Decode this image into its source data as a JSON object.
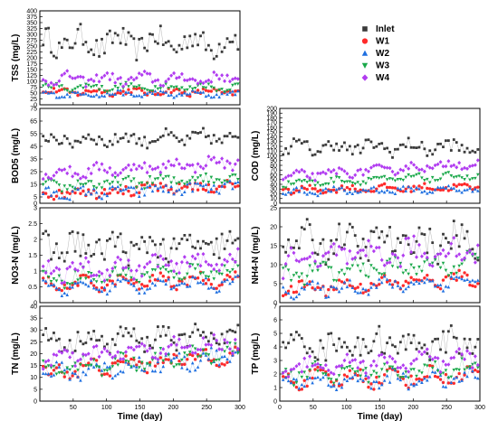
{
  "chart_data": [
    {
      "type": "scatter",
      "id": "tss",
      "ylabel": "TSS (mg/L)",
      "ylim": [
        0,
        400
      ],
      "yticks": [
        0,
        25,
        50,
        75,
        100,
        125,
        150,
        175,
        200,
        225,
        250,
        275,
        300,
        325,
        350,
        375,
        400
      ],
      "xlim": [
        0,
        300
      ],
      "xticks": [],
      "xlabel": "",
      "series": [
        {
          "name": "Inlet",
          "mean": 265,
          "amp": 30,
          "noise": 50,
          "trend": 0
        },
        {
          "name": "W1",
          "mean": 55,
          "amp": 8,
          "noise": 12,
          "trend": 0
        },
        {
          "name": "W2",
          "mean": 45,
          "amp": 8,
          "noise": 10,
          "trend": 0
        },
        {
          "name": "W3",
          "mean": 75,
          "amp": 10,
          "noise": 12,
          "trend": 0
        },
        {
          "name": "W4",
          "mean": 110,
          "amp": 15,
          "noise": 20,
          "trend": 0
        }
      ]
    },
    {
      "type": "scatter",
      "id": "bod",
      "ylabel": "BOD5 (mg/L)",
      "ylim": [
        0,
        75
      ],
      "yticks": [
        0,
        5,
        15,
        25,
        35,
        45,
        55,
        65,
        75
      ],
      "xlim": [
        0,
        300
      ],
      "xticks": [],
      "xlabel": "",
      "series": [
        {
          "name": "Inlet",
          "mean": 50,
          "amp": 3,
          "noise": 5,
          "trend": 2
        },
        {
          "name": "W1",
          "mean": 8,
          "amp": 2,
          "noise": 4,
          "trend": 6
        },
        {
          "name": "W2",
          "mean": 7,
          "amp": 2,
          "noise": 4,
          "trend": 6
        },
        {
          "name": "W3",
          "mean": 13,
          "amp": 2,
          "noise": 4,
          "trend": 8
        },
        {
          "name": "W4",
          "mean": 23,
          "amp": 3,
          "noise": 4,
          "trend": 10
        }
      ]
    },
    {
      "type": "scatter",
      "id": "cod",
      "ylabel": "COD (mg/L)",
      "ylim": [
        0,
        200
      ],
      "yticks": [
        0,
        10,
        20,
        30,
        40,
        50,
        60,
        70,
        80,
        90,
        100,
        110,
        120,
        130,
        140,
        150,
        160,
        170,
        180,
        190,
        200
      ],
      "xlim": [
        0,
        300
      ],
      "xticks": [],
      "xlabel": "",
      "series": [
        {
          "name": "Inlet",
          "mean": 118,
          "amp": 8,
          "noise": 14,
          "trend": 0
        },
        {
          "name": "W1",
          "mean": 28,
          "amp": 4,
          "noise": 6,
          "trend": 6
        },
        {
          "name": "W2",
          "mean": 24,
          "amp": 4,
          "noise": 6,
          "trend": 6
        },
        {
          "name": "W3",
          "mean": 42,
          "amp": 5,
          "noise": 6,
          "trend": 16
        },
        {
          "name": "W4",
          "mean": 55,
          "amp": 5,
          "noise": 8,
          "trend": 30
        }
      ]
    },
    {
      "type": "scatter",
      "id": "no3",
      "ylabel": "NO3-N (mg/L)",
      "ylim": [
        0,
        3.0
      ],
      "yticks": [
        0,
        0.5,
        1.0,
        1.5,
        2.0,
        2.5,
        3.0
      ],
      "xlim": [
        0,
        300
      ],
      "xticks": [],
      "xlabel": "",
      "series": [
        {
          "name": "Inlet",
          "mean": 1.75,
          "amp": 0.2,
          "noise": 0.45,
          "trend": 0
        },
        {
          "name": "W1",
          "mean": 0.55,
          "amp": 0.15,
          "noise": 0.15,
          "trend": 0.2
        },
        {
          "name": "W2",
          "mean": 0.45,
          "amp": 0.15,
          "noise": 0.15,
          "trend": 0.2
        },
        {
          "name": "W3",
          "mean": 0.75,
          "amp": 0.15,
          "noise": 0.2,
          "trend": 0.3
        },
        {
          "name": "W4",
          "mean": 0.95,
          "amp": 0.2,
          "noise": 0.25,
          "trend": 0.4
        }
      ]
    },
    {
      "type": "scatter",
      "id": "nh4",
      "ylabel": "NH4-N (mg/L)",
      "ylim": [
        0,
        25
      ],
      "yticks": [
        0,
        5,
        10,
        15,
        20,
        25
      ],
      "xlim": [
        0,
        300
      ],
      "xticks": [],
      "xlabel": "",
      "series": [
        {
          "name": "Inlet",
          "mean": 16,
          "amp": 2,
          "noise": 4,
          "trend": 0
        },
        {
          "name": "W1",
          "mean": 3.5,
          "amp": 1,
          "noise": 1.5,
          "trend": 3
        },
        {
          "name": "W2",
          "mean": 3.0,
          "amp": 1,
          "noise": 1.5,
          "trend": 3
        },
        {
          "name": "W3",
          "mean": 7.5,
          "amp": 1.5,
          "noise": 2,
          "trend": 3
        },
        {
          "name": "W4",
          "mean": 11,
          "amp": 2,
          "noise": 3,
          "trend": 3
        }
      ]
    },
    {
      "type": "scatter",
      "id": "tn",
      "ylabel": "TN (mg/L)",
      "ylim": [
        0,
        40
      ],
      "yticks": [
        0,
        5,
        10,
        15,
        20,
        25,
        30,
        35,
        40
      ],
      "xlim": [
        0,
        300
      ],
      "xticks": [
        50,
        100,
        150,
        200,
        250,
        300
      ],
      "xlabel": "Time (day)",
      "series": [
        {
          "name": "Inlet",
          "mean": 25,
          "amp": 3,
          "noise": 4,
          "trend": 3
        },
        {
          "name": "W1",
          "mean": 12,
          "amp": 2,
          "noise": 3,
          "trend": 8
        },
        {
          "name": "W2",
          "mean": 11,
          "amp": 2,
          "noise": 3,
          "trend": 8
        },
        {
          "name": "W3",
          "mean": 13,
          "amp": 2,
          "noise": 3,
          "trend": 8
        },
        {
          "name": "W4",
          "mean": 17,
          "amp": 2,
          "noise": 3,
          "trend": 8
        }
      ]
    },
    {
      "type": "scatter",
      "id": "tp",
      "ylabel": "TP (mg/L)",
      "ylim": [
        0,
        7
      ],
      "yticks": [
        0,
        1,
        2,
        3,
        4,
        5,
        6,
        7
      ],
      "xlim": [
        0,
        300
      ],
      "xticks": [
        0,
        50,
        100,
        150,
        200,
        250,
        300
      ],
      "xlabel": "Time (day)",
      "series": [
        {
          "name": "Inlet",
          "mean": 4.2,
          "amp": 0.5,
          "noise": 1.0,
          "trend": 0
        },
        {
          "name": "W1",
          "mean": 1.6,
          "amp": 0.4,
          "noise": 0.5,
          "trend": 0.3
        },
        {
          "name": "W2",
          "mean": 1.4,
          "amp": 0.4,
          "noise": 0.5,
          "trend": 0.3
        },
        {
          "name": "W3",
          "mean": 2.0,
          "amp": 0.4,
          "noise": 0.5,
          "trend": 0.4
        },
        {
          "name": "W4",
          "mean": 2.6,
          "amp": 0.5,
          "noise": 0.6,
          "trend": 0.4
        }
      ]
    }
  ],
  "legend": [
    {
      "name": "Inlet",
      "color": "#3a3a3a",
      "marker": "square"
    },
    {
      "name": "W1",
      "color": "#ff2a2a",
      "marker": "circle"
    },
    {
      "name": "W2",
      "color": "#1e6fe0",
      "marker": "triangle-up"
    },
    {
      "name": "W3",
      "color": "#1aa84a",
      "marker": "triangle-down"
    },
    {
      "name": "W4",
      "color": "#b13cf0",
      "marker": "diamond"
    }
  ]
}
